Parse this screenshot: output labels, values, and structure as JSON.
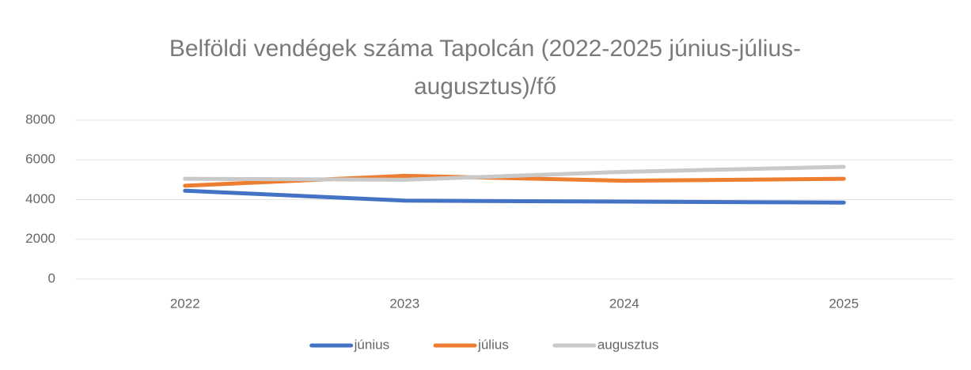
{
  "chart_data": {
    "type": "line",
    "title": "Belföldi vendégek száma Tapolcán (2022-2025 június-július-augusztus)/fő",
    "categories": [
      "2022",
      "2023",
      "2024",
      "2025"
    ],
    "series": [
      {
        "name": "június",
        "color": "#4472c4",
        "values": [
          4450,
          3950,
          3900,
          3850
        ]
      },
      {
        "name": "július",
        "color": "#ed7d31",
        "values": [
          4700,
          5200,
          4950,
          5050
        ]
      },
      {
        "name": "augusztus",
        "color": "#c9c9c9",
        "values": [
          5050,
          5000,
          5400,
          5650
        ]
      }
    ],
    "ylim": [
      0,
      8000
    ],
    "yticks": [
      0,
      2000,
      4000,
      6000,
      8000
    ],
    "grid": true,
    "legend": "bottom"
  }
}
